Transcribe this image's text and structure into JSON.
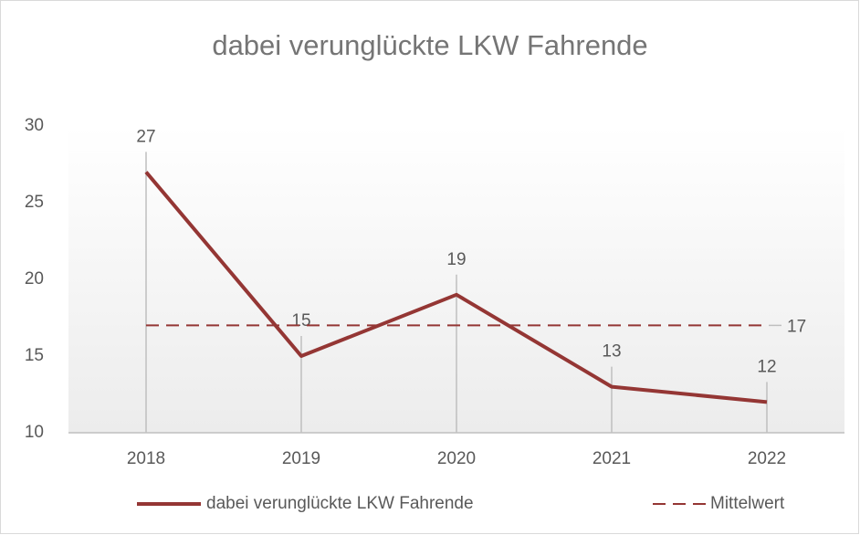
{
  "chart_data": {
    "type": "line",
    "title": "dabei verunglückte LKW Fahrende",
    "categories": [
      "2018",
      "2019",
      "2020",
      "2021",
      "2022"
    ],
    "series": [
      {
        "name": "dabei verunglückte LKW Fahrende",
        "color": "#943634",
        "dash": false,
        "values": [
          27,
          15,
          19,
          13,
          12
        ]
      },
      {
        "name": "Mittelwert",
        "color": "#943634",
        "dash": true,
        "values": [
          17,
          17,
          17,
          17,
          17
        ],
        "value_labels": [
          null,
          null,
          null,
          null,
          "17"
        ]
      }
    ],
    "ylim": [
      10,
      30
    ],
    "yticks": [
      10,
      15,
      20,
      25,
      30
    ],
    "grid": false,
    "legend": "bottom"
  }
}
